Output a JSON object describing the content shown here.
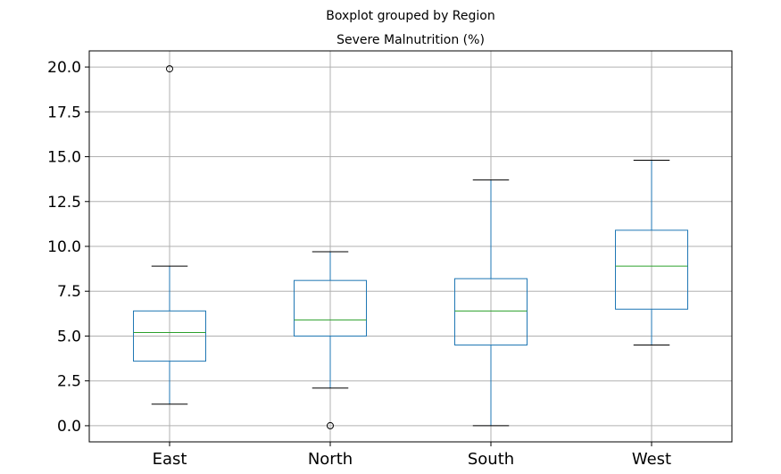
{
  "chart_data": {
    "type": "box",
    "title": "Boxplot grouped by Region",
    "subtitle": "Severe Malnutrition (%)",
    "xlabel": "",
    "ylabel": "",
    "ylim": [
      -0.9,
      20.9
    ],
    "y_ticks": [
      0.0,
      2.5,
      5.0,
      7.5,
      10.0,
      12.5,
      15.0,
      17.5,
      20.0
    ],
    "y_tick_labels": [
      "0.0",
      "2.5",
      "5.0",
      "7.5",
      "10.0",
      "12.5",
      "15.0",
      "17.5",
      "20.0"
    ],
    "grid": true,
    "categories": [
      "East",
      "North",
      "South",
      "West"
    ],
    "boxes": [
      {
        "category": "East",
        "whisker_low": 1.2,
        "q1": 3.6,
        "median": 5.2,
        "q3": 6.4,
        "whisker_high": 8.9,
        "outliers": [
          19.9
        ]
      },
      {
        "category": "North",
        "whisker_low": 2.1,
        "q1": 5.0,
        "median": 5.9,
        "q3": 8.1,
        "whisker_high": 9.7,
        "outliers": [
          0.0
        ]
      },
      {
        "category": "South",
        "whisker_low": 0.0,
        "q1": 4.5,
        "median": 6.4,
        "q3": 8.2,
        "whisker_high": 13.7,
        "outliers": []
      },
      {
        "category": "West",
        "whisker_low": 4.5,
        "q1": 6.5,
        "median": 8.9,
        "q3": 10.9,
        "whisker_high": 14.8,
        "outliers": []
      }
    ],
    "colors": {
      "box": "#1f77b4",
      "median": "#2ca02c",
      "grid": "#b0b0b0",
      "axis": "#000000"
    }
  }
}
